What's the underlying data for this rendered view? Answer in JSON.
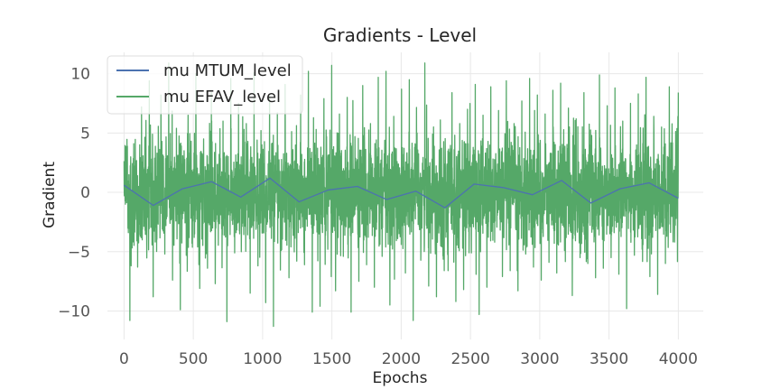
{
  "chart_data": {
    "type": "line",
    "title": "Gradients - Level",
    "xlabel": "Epochs",
    "ylabel": "Gradient",
    "xlim": [
      -120,
      4180
    ],
    "ylim": [
      -12.4,
      11.8
    ],
    "xticks": [
      0,
      500,
      1000,
      1500,
      2000,
      2500,
      3000,
      3500,
      4000
    ],
    "yticks": [
      -10,
      -5,
      0,
      5,
      10
    ],
    "grid": true,
    "legend_position": "top-left",
    "series": [
      {
        "name": "mu MTUM_level",
        "color": "#4c72b0",
        "x_range": [
          0,
          4000
        ],
        "values": [
          0.6,
          -1.1,
          0.3,
          0.9,
          -0.4,
          1.2,
          -0.8,
          0.2,
          0.5,
          -0.6,
          0.1,
          -1.3,
          0.7,
          0.4,
          -0.2,
          1.0,
          -0.9,
          0.3,
          0.8,
          -0.5
        ]
      },
      {
        "name": "mu EFAV_level",
        "color": "#55a868",
        "x_range": [
          0,
          4000
        ],
        "n_points": 4000,
        "typical_std": 2.2,
        "approx_range": [
          -11.3,
          10.9
        ],
        "values": [
          1.2,
          -10.8,
          4.1,
          -6.3,
          7.2,
          -3.5,
          9.4,
          -8.8,
          3.3,
          8.2,
          -5.2,
          10.9,
          -7.4,
          5.4,
          -9.9,
          2.8,
          6.5,
          -4.3,
          10.0,
          -8.1,
          4.5,
          -6.4,
          8.4,
          -7.7,
          3.2,
          6.0,
          -10.9,
          9.6,
          -5.1,
          7.5,
          -2.6,
          5.8,
          -8.5,
          10.1,
          -6.2,
          4.0,
          -9.3,
          8.1,
          -11.3,
          6.7,
          -4.9,
          9.1,
          -7.2,
          3.6,
          -5.8,
          8.2,
          -6.1,
          10.2,
          -10.1,
          5.3,
          -9.6,
          7.9,
          -4.8,
          10.7,
          -8.3,
          6.6,
          -5.4,
          8.0,
          -10.1,
          4.7,
          -7.5,
          9.0,
          -6.1,
          5.8,
          -8.0,
          9.7,
          -5.4,
          10.2,
          -9.5,
          6.4,
          -3.9,
          8.7,
          -6.8,
          9.5,
          -10.8,
          5.0,
          -4.6,
          10.9,
          -7.9,
          4.9,
          -8.8,
          6.1,
          -6.6,
          8.4,
          -9.2,
          5.8,
          -8.2,
          7.0,
          -5.1,
          9.1,
          -10.3,
          6.5,
          -8.0,
          8.9,
          -4.2,
          6.9,
          -7.1,
          9.4,
          -6.6,
          5.8,
          -8.3,
          7.7,
          -5.2,
          9.6,
          -6.3,
          8.2,
          -7.4,
          6.6,
          -5.9,
          8.6,
          -6.8,
          9.2,
          -4.9,
          7.1,
          -8.7,
          6.2,
          -5.5,
          8.4,
          -6.0,
          4.8,
          -7.2,
          9.9,
          -6.4,
          7.3,
          -5.5,
          8.8,
          -6.9,
          6.0,
          -9.8,
          7.5,
          -5.3,
          8.3,
          -4.8,
          9.7,
          -7.1,
          6.4,
          -8.6,
          5.5,
          -6.0,
          8.9,
          -2.8,
          1.2
        ]
      }
    ]
  }
}
